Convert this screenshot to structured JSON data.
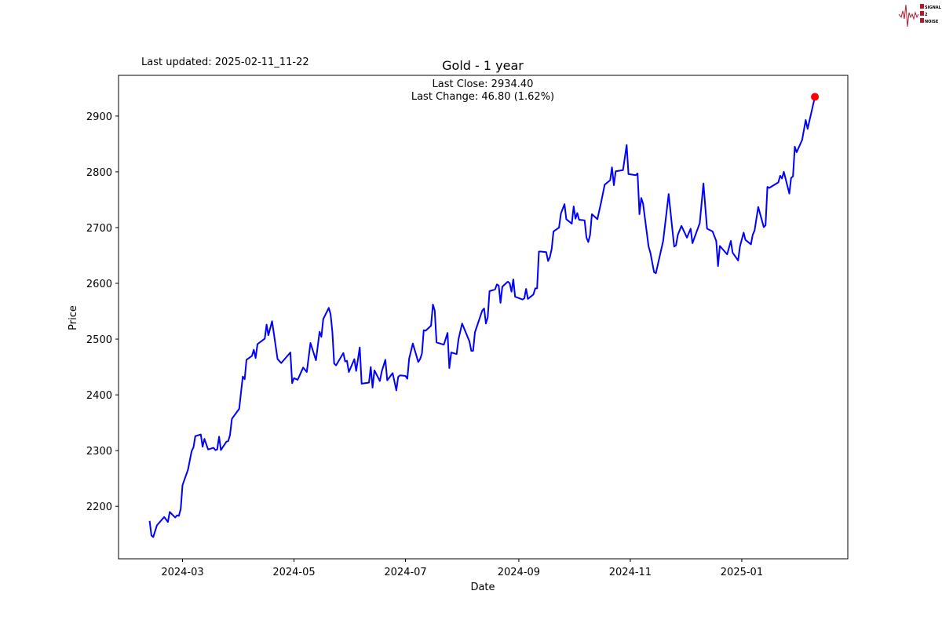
{
  "header": {
    "last_updated": "Last updated: 2025-02-11_11-22"
  },
  "logo": {
    "text": [
      "SIGNAL",
      "2",
      "NOISE"
    ],
    "color": "#b01c2e"
  },
  "chart_data": {
    "type": "line",
    "title": "Gold - 1 year",
    "xlabel": "Date",
    "ylabel": "Price",
    "annotation": {
      "last_close": "Last Close: 2934.40",
      "last_change": "Last Change: 46.80 (1.62%)"
    },
    "xlim": [
      "2024-01-26",
      "2025-02-28"
    ],
    "ylim": [
      2106,
      2973
    ],
    "x_ticks": [
      "2024-03",
      "2024-05",
      "2024-07",
      "2024-09",
      "2024-11",
      "2025-01"
    ],
    "y_ticks": [
      2200,
      2300,
      2400,
      2500,
      2600,
      2700,
      2800,
      2900
    ],
    "grid": false,
    "line_color": "#0000ff",
    "last_point_color": "#ff0000",
    "last_point": [
      "2025-02-10",
      2934.4
    ],
    "points": [
      [
        "2024-02-12",
        2174
      ],
      [
        "2024-02-13",
        2148
      ],
      [
        "2024-02-14",
        2145
      ],
      [
        "2024-02-16",
        2166
      ],
      [
        "2024-02-20",
        2181
      ],
      [
        "2024-02-22",
        2172
      ],
      [
        "2024-02-23",
        2190
      ],
      [
        "2024-02-26",
        2180
      ],
      [
        "2024-02-27",
        2184
      ],
      [
        "2024-02-28",
        2183
      ],
      [
        "2024-02-29",
        2195
      ],
      [
        "2024-03-01",
        2238
      ],
      [
        "2024-03-04",
        2266
      ],
      [
        "2024-03-06",
        2299
      ],
      [
        "2024-03-07",
        2306
      ],
      [
        "2024-03-08",
        2326
      ],
      [
        "2024-03-11",
        2329
      ],
      [
        "2024-03-12",
        2307
      ],
      [
        "2024-03-13",
        2321
      ],
      [
        "2024-03-15",
        2302
      ],
      [
        "2024-03-18",
        2305
      ],
      [
        "2024-03-19",
        2301
      ],
      [
        "2024-03-20",
        2302
      ],
      [
        "2024-03-21",
        2325
      ],
      [
        "2024-03-22",
        2301
      ],
      [
        "2024-03-25",
        2316
      ],
      [
        "2024-03-26",
        2317
      ],
      [
        "2024-03-27",
        2328
      ],
      [
        "2024-03-28",
        2357
      ],
      [
        "2024-04-01",
        2375
      ],
      [
        "2024-04-03",
        2433
      ],
      [
        "2024-04-04",
        2428
      ],
      [
        "2024-04-05",
        2463
      ],
      [
        "2024-04-08",
        2470
      ],
      [
        "2024-04-09",
        2481
      ],
      [
        "2024-04-10",
        2466
      ],
      [
        "2024-04-11",
        2491
      ],
      [
        "2024-04-15",
        2501
      ],
      [
        "2024-04-16",
        2526
      ],
      [
        "2024-04-17",
        2507
      ],
      [
        "2024-04-19",
        2532
      ],
      [
        "2024-04-22",
        2464
      ],
      [
        "2024-04-24",
        2457
      ],
      [
        "2024-04-29",
        2476
      ],
      [
        "2024-04-30",
        2421
      ],
      [
        "2024-05-01",
        2430
      ],
      [
        "2024-05-03",
        2427
      ],
      [
        "2024-05-06",
        2449
      ],
      [
        "2024-05-08",
        2441
      ],
      [
        "2024-05-10",
        2493
      ],
      [
        "2024-05-13",
        2462
      ],
      [
        "2024-05-15",
        2513
      ],
      [
        "2024-05-16",
        2504
      ],
      [
        "2024-05-17",
        2536
      ],
      [
        "2024-05-20",
        2556
      ],
      [
        "2024-05-21",
        2545
      ],
      [
        "2024-05-22",
        2513
      ],
      [
        "2024-05-23",
        2456
      ],
      [
        "2024-05-24",
        2453
      ],
      [
        "2024-05-28",
        2475
      ],
      [
        "2024-05-29",
        2460
      ],
      [
        "2024-05-30",
        2461
      ],
      [
        "2024-05-31",
        2441
      ],
      [
        "2024-06-03",
        2464
      ],
      [
        "2024-06-04",
        2443
      ],
      [
        "2024-06-06",
        2485
      ],
      [
        "2024-06-07",
        2420
      ],
      [
        "2024-06-11",
        2422
      ],
      [
        "2024-06-12",
        2450
      ],
      [
        "2024-06-13",
        2413
      ],
      [
        "2024-06-14",
        2444
      ],
      [
        "2024-06-17",
        2425
      ],
      [
        "2024-06-18",
        2442
      ],
      [
        "2024-06-20",
        2463
      ],
      [
        "2024-06-21",
        2426
      ],
      [
        "2024-06-24",
        2439
      ],
      [
        "2024-06-26",
        2408
      ],
      [
        "2024-06-27",
        2432
      ],
      [
        "2024-06-28",
        2435
      ],
      [
        "2024-07-01",
        2434
      ],
      [
        "2024-07-02",
        2429
      ],
      [
        "2024-07-03",
        2465
      ],
      [
        "2024-07-05",
        2492
      ],
      [
        "2024-07-08",
        2459
      ],
      [
        "2024-07-09",
        2464
      ],
      [
        "2024-07-10",
        2474
      ],
      [
        "2024-07-11",
        2516
      ],
      [
        "2024-07-12",
        2515
      ],
      [
        "2024-07-15",
        2524
      ],
      [
        "2024-07-16",
        2562
      ],
      [
        "2024-07-17",
        2551
      ],
      [
        "2024-07-18",
        2494
      ],
      [
        "2024-07-22",
        2490
      ],
      [
        "2024-07-24",
        2511
      ],
      [
        "2024-07-25",
        2448
      ],
      [
        "2024-07-26",
        2476
      ],
      [
        "2024-07-29",
        2473
      ],
      [
        "2024-07-30",
        2500
      ],
      [
        "2024-08-01",
        2528
      ],
      [
        "2024-08-05",
        2496
      ],
      [
        "2024-08-06",
        2479
      ],
      [
        "2024-08-07",
        2479
      ],
      [
        "2024-08-08",
        2512
      ],
      [
        "2024-08-12",
        2551
      ],
      [
        "2024-08-13",
        2555
      ],
      [
        "2024-08-14",
        2528
      ],
      [
        "2024-08-15",
        2539
      ],
      [
        "2024-08-16",
        2586
      ],
      [
        "2024-08-19",
        2589
      ],
      [
        "2024-08-20",
        2598
      ],
      [
        "2024-08-21",
        2596
      ],
      [
        "2024-08-22",
        2565
      ],
      [
        "2024-08-23",
        2594
      ],
      [
        "2024-08-26",
        2603
      ],
      [
        "2024-08-27",
        2600
      ],
      [
        "2024-08-28",
        2585
      ],
      [
        "2024-08-29",
        2607
      ],
      [
        "2024-08-30",
        2576
      ],
      [
        "2024-09-03",
        2571
      ],
      [
        "2024-09-04",
        2573
      ],
      [
        "2024-09-05",
        2590
      ],
      [
        "2024-09-06",
        2572
      ],
      [
        "2024-09-09",
        2580
      ],
      [
        "2024-09-10",
        2591
      ],
      [
        "2024-09-11",
        2591
      ],
      [
        "2024-09-12",
        2657
      ],
      [
        "2024-09-13",
        2657
      ],
      [
        "2024-09-16",
        2656
      ],
      [
        "2024-09-17",
        2640
      ],
      [
        "2024-09-18",
        2647
      ],
      [
        "2024-09-19",
        2662
      ],
      [
        "2024-09-20",
        2693
      ],
      [
        "2024-09-23",
        2700
      ],
      [
        "2024-09-24",
        2725
      ],
      [
        "2024-09-26",
        2742
      ],
      [
        "2024-09-27",
        2715
      ],
      [
        "2024-09-30",
        2707
      ],
      [
        "2024-10-01",
        2738
      ],
      [
        "2024-10-02",
        2716
      ],
      [
        "2024-10-03",
        2726
      ],
      [
        "2024-10-04",
        2714
      ],
      [
        "2024-10-07",
        2713
      ],
      [
        "2024-10-08",
        2682
      ],
      [
        "2024-10-09",
        2674
      ],
      [
        "2024-10-10",
        2687
      ],
      [
        "2024-10-11",
        2724
      ],
      [
        "2024-10-14",
        2715
      ],
      [
        "2024-10-16",
        2745
      ],
      [
        "2024-10-18",
        2777
      ],
      [
        "2024-10-21",
        2785
      ],
      [
        "2024-10-22",
        2808
      ],
      [
        "2024-10-23",
        2776
      ],
      [
        "2024-10-24",
        2801
      ],
      [
        "2024-10-28",
        2803
      ],
      [
        "2024-10-30",
        2848
      ],
      [
        "2024-10-31",
        2796
      ],
      [
        "2024-11-04",
        2794
      ],
      [
        "2024-11-05",
        2797
      ],
      [
        "2024-11-06",
        2724
      ],
      [
        "2024-11-07",
        2753
      ],
      [
        "2024-11-08",
        2743
      ],
      [
        "2024-11-11",
        2666
      ],
      [
        "2024-11-12",
        2655
      ],
      [
        "2024-11-14",
        2620
      ],
      [
        "2024-11-15",
        2618
      ],
      [
        "2024-11-19",
        2676
      ],
      [
        "2024-11-22",
        2760
      ],
      [
        "2024-11-25",
        2666
      ],
      [
        "2024-11-26",
        2668
      ],
      [
        "2024-11-27",
        2687
      ],
      [
        "2024-11-29",
        2703
      ],
      [
        "2024-12-02",
        2682
      ],
      [
        "2024-12-04",
        2698
      ],
      [
        "2024-12-05",
        2672
      ],
      [
        "2024-12-09",
        2708
      ],
      [
        "2024-12-11",
        2779
      ],
      [
        "2024-12-13",
        2698
      ],
      [
        "2024-12-16",
        2693
      ],
      [
        "2024-12-18",
        2676
      ],
      [
        "2024-12-19",
        2631
      ],
      [
        "2024-12-20",
        2667
      ],
      [
        "2024-12-24",
        2652
      ],
      [
        "2024-12-26",
        2676
      ],
      [
        "2024-12-27",
        2655
      ],
      [
        "2024-12-30",
        2641
      ],
      [
        "2024-12-31",
        2666
      ],
      [
        "2025-01-02",
        2691
      ],
      [
        "2025-01-03",
        2678
      ],
      [
        "2025-01-06",
        2670
      ],
      [
        "2025-01-07",
        2687
      ],
      [
        "2025-01-08",
        2695
      ],
      [
        "2025-01-10",
        2737
      ],
      [
        "2025-01-13",
        2701
      ],
      [
        "2025-01-14",
        2704
      ],
      [
        "2025-01-15",
        2773
      ],
      [
        "2025-01-16",
        2771
      ],
      [
        "2025-01-21",
        2781
      ],
      [
        "2025-01-22",
        2793
      ],
      [
        "2025-01-23",
        2788
      ],
      [
        "2025-01-24",
        2800
      ],
      [
        "2025-01-27",
        2761
      ],
      [
        "2025-01-28",
        2789
      ],
      [
        "2025-01-29",
        2792
      ],
      [
        "2025-01-30",
        2845
      ],
      [
        "2025-01-31",
        2835
      ],
      [
        "2025-02-03",
        2857
      ],
      [
        "2025-02-05",
        2893
      ],
      [
        "2025-02-06",
        2877
      ],
      [
        "2025-02-10",
        2934.4
      ]
    ]
  }
}
